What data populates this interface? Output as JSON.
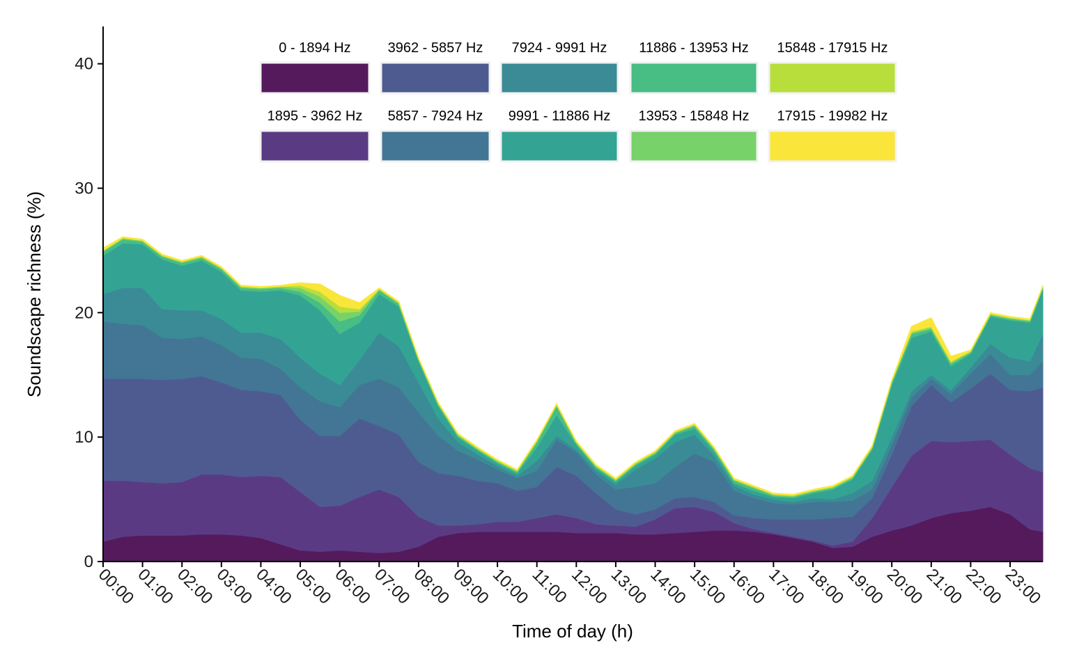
{
  "chart_data": {
    "type": "area",
    "stacked": true,
    "xlabel": "Time of day (h)",
    "ylabel": "Soundscape richness (%)",
    "ylim": [
      0,
      43
    ],
    "yticks": [
      0,
      10,
      20,
      30,
      40
    ],
    "xlim": [
      0,
      23.83
    ],
    "xticks": [
      "00:00",
      "01:00",
      "02:00",
      "03:00",
      "04:00",
      "05:00",
      "06:00",
      "07:00",
      "08:00",
      "09:00",
      "10:00",
      "11:00",
      "12:00",
      "13:00",
      "14:00",
      "15:00",
      "16:00",
      "17:00",
      "18:00",
      "19:00",
      "20:00",
      "21:00",
      "22:00",
      "23:00"
    ],
    "legend_position": "top-inside",
    "grid": false,
    "x": [
      0,
      0.5,
      1,
      1.5,
      2,
      2.5,
      3,
      3.5,
      4,
      4.5,
      5,
      5.5,
      6,
      6.5,
      7,
      7.5,
      8,
      8.5,
      9,
      9.5,
      10,
      10.5,
      11,
      11.5,
      12,
      12.5,
      13,
      13.5,
      14,
      14.5,
      15,
      15.5,
      16,
      16.5,
      17,
      17.5,
      18,
      18.5,
      19,
      19.5,
      20,
      20.5,
      21,
      21.5,
      22,
      22.5,
      23,
      23.5,
      23.83
    ],
    "series": [
      {
        "name": "0 - 1894 Hz",
        "color": "#541a5c",
        "values": [
          1.6,
          2.0,
          2.1,
          2.1,
          2.1,
          2.2,
          2.2,
          2.1,
          1.9,
          1.4,
          0.9,
          0.8,
          0.9,
          0.8,
          0.7,
          0.8,
          1.2,
          2.0,
          2.3,
          2.4,
          2.4,
          2.4,
          2.4,
          2.4,
          2.3,
          2.3,
          2.3,
          2.2,
          2.2,
          2.3,
          2.4,
          2.5,
          2.5,
          2.4,
          2.2,
          1.9,
          1.6,
          1.1,
          1.2,
          2.0,
          2.5,
          2.9,
          3.5,
          3.9,
          4.1,
          4.4,
          3.8,
          2.6,
          2.4
        ]
      },
      {
        "name": "1895 - 3962 Hz",
        "color": "#5b3a84",
        "values": [
          4.9,
          4.5,
          4.3,
          4.2,
          4.3,
          4.8,
          4.8,
          4.7,
          5.0,
          5.4,
          4.7,
          3.6,
          3.6,
          4.4,
          5.1,
          4.4,
          2.4,
          0.9,
          0.6,
          0.6,
          0.8,
          0.8,
          1.1,
          1.4,
          1.2,
          0.7,
          0.6,
          0.6,
          1.2,
          2.0,
          2.0,
          1.5,
          0.6,
          0.2,
          0.1,
          0.1,
          0.1,
          0.2,
          0.4,
          1.5,
          3.5,
          5.6,
          6.2,
          5.7,
          5.6,
          5.4,
          4.8,
          4.9,
          4.8
        ]
      },
      {
        "name": "3962 - 5857 Hz",
        "color": "#4e5b90",
        "values": [
          8.2,
          8.2,
          8.3,
          8.3,
          8.3,
          7.9,
          7.4,
          7.0,
          6.8,
          6.6,
          5.8,
          5.7,
          5.6,
          6.3,
          5.1,
          5.0,
          4.4,
          4.2,
          4.0,
          3.5,
          3.1,
          2.5,
          2.5,
          3.8,
          3.4,
          2.5,
          1.3,
          1.0,
          0.8,
          0.8,
          0.8,
          0.8,
          0.6,
          0.9,
          1.1,
          1.4,
          1.7,
          2.2,
          2.0,
          1.6,
          2.6,
          4.0,
          4.5,
          3.2,
          4.2,
          5.3,
          5.2,
          6.2,
          6.8
        ]
      },
      {
        "name": "5857 - 7924 Hz",
        "color": "#437595",
        "values": [
          4.6,
          4.4,
          4.3,
          3.4,
          3.2,
          3.2,
          3.0,
          2.6,
          2.6,
          2.1,
          2.6,
          2.8,
          2.3,
          2.7,
          3.8,
          3.8,
          4.0,
          3.0,
          2.0,
          1.7,
          1.1,
          1.0,
          1.3,
          2.2,
          1.9,
          1.5,
          1.6,
          2.2,
          2.1,
          2.5,
          3.5,
          3.2,
          2.0,
          1.6,
          1.3,
          1.2,
          1.4,
          1.3,
          1.3,
          0.7,
          0.8,
          0.7,
          0.5,
          0.7,
          1.2,
          1.6,
          1.2,
          1.3,
          2.1
        ]
      },
      {
        "name": "7924 - 9991 Hz",
        "color": "#3a8b96",
        "values": [
          2.2,
          2.9,
          3.0,
          2.3,
          2.3,
          2.1,
          2.1,
          2.0,
          2.1,
          2.4,
          2.4,
          2.2,
          1.8,
          2.0,
          3.7,
          3.3,
          2.4,
          1.4,
          0.7,
          0.4,
          0.3,
          0.2,
          0.8,
          0.3,
          0.2,
          0.3,
          0.4,
          1.4,
          2.0,
          2.0,
          1.5,
          0.5,
          0.4,
          0.3,
          0.3,
          0.2,
          0.3,
          0.2,
          0.6,
          0.7,
          0.6,
          0.5,
          0.3,
          0.3,
          0.5,
          0.8,
          1.4,
          1.1,
          2.2
        ]
      },
      {
        "name": "9991 - 11886 Hz",
        "color": "#33a494",
        "values": [
          3.1,
          3.6,
          3.5,
          4.0,
          3.6,
          4.0,
          3.8,
          3.4,
          3.3,
          3.9,
          5.0,
          5.1,
          4.1,
          3.0,
          3.1,
          3.2,
          1.7,
          1.0,
          0.4,
          0.3,
          0.2,
          0.2,
          1.1,
          1.7,
          0.4,
          0.2,
          0.2,
          0.3,
          0.3,
          0.6,
          0.5,
          0.3,
          0.2,
          0.3,
          0.2,
          0.3,
          0.4,
          0.8,
          1.1,
          2.5,
          4.2,
          4.3,
          3.5,
          1.9,
          1.1,
          2.2,
          3.0,
          3.1,
          3.6
        ]
      },
      {
        "name": "11886 - 13953 Hz",
        "color": "#48bd84",
        "values": [
          0.3,
          0.3,
          0.2,
          0.2,
          0.2,
          0.2,
          0.2,
          0.2,
          0.2,
          0.2,
          0.3,
          0.6,
          1.0,
          0.6,
          0.3,
          0.2,
          0.1,
          0.1,
          0.1,
          0.1,
          0.1,
          0.1,
          0.4,
          0.7,
          0.1,
          0.1,
          0.1,
          0.1,
          0.1,
          0.1,
          0.2,
          0.2,
          0.2,
          0.2,
          0.1,
          0.1,
          0.1,
          0.1,
          0.1,
          0.1,
          0.2,
          0.3,
          0.2,
          0.2,
          0.1,
          0.1,
          0.1,
          0.1,
          0.1
        ]
      },
      {
        "name": "13953 - 15848 Hz",
        "color": "#78d26a",
        "values": [
          0.1,
          0.1,
          0.1,
          0.1,
          0.1,
          0.1,
          0.1,
          0.1,
          0.1,
          0.1,
          0.3,
          0.5,
          0.7,
          0.3,
          0.1,
          0.1,
          0.1,
          0.1,
          0.1,
          0.1,
          0.1,
          0.1,
          0.1,
          0.1,
          0.1,
          0.1,
          0.1,
          0.1,
          0.1,
          0.1,
          0.1,
          0.1,
          0.1,
          0.1,
          0.1,
          0.1,
          0.1,
          0.1,
          0.1,
          0.1,
          0.1,
          0.1,
          0.1,
          0.1,
          0.1,
          0.1,
          0.1,
          0.1,
          0.1
        ]
      },
      {
        "name": "15848 - 17915 Hz",
        "color": "#b8de3c",
        "values": [
          0.0,
          0.0,
          0.0,
          0.0,
          0.0,
          0.0,
          0.0,
          0.0,
          0.0,
          0.0,
          0.2,
          0.4,
          0.5,
          0.2,
          0.0,
          0.0,
          0.0,
          0.0,
          0.0,
          0.0,
          0.0,
          0.0,
          0.0,
          0.0,
          0.0,
          0.0,
          0.0,
          0.0,
          0.0,
          0.0,
          0.0,
          0.0,
          0.0,
          0.0,
          0.0,
          0.0,
          0.0,
          0.0,
          0.0,
          0.0,
          0.0,
          0.1,
          0.1,
          0.1,
          0.0,
          0.0,
          0.0,
          0.0,
          0.0
        ]
      },
      {
        "name": "17915 - 19982 Hz",
        "color": "#fae63a",
        "values": [
          0.2,
          0.1,
          0.1,
          0.1,
          0.1,
          0.1,
          0.1,
          0.1,
          0.1,
          0.1,
          0.2,
          0.6,
          0.9,
          0.5,
          0.1,
          0.1,
          0.1,
          0.1,
          0.1,
          0.1,
          0.1,
          0.1,
          0.1,
          0.1,
          0.1,
          0.1,
          0.1,
          0.1,
          0.1,
          0.1,
          0.1,
          0.1,
          0.1,
          0.1,
          0.1,
          0.1,
          0.1,
          0.1,
          0.1,
          0.1,
          0.1,
          0.4,
          0.7,
          0.4,
          0.1,
          0.1,
          0.1,
          0.1,
          0.1
        ]
      }
    ]
  }
}
